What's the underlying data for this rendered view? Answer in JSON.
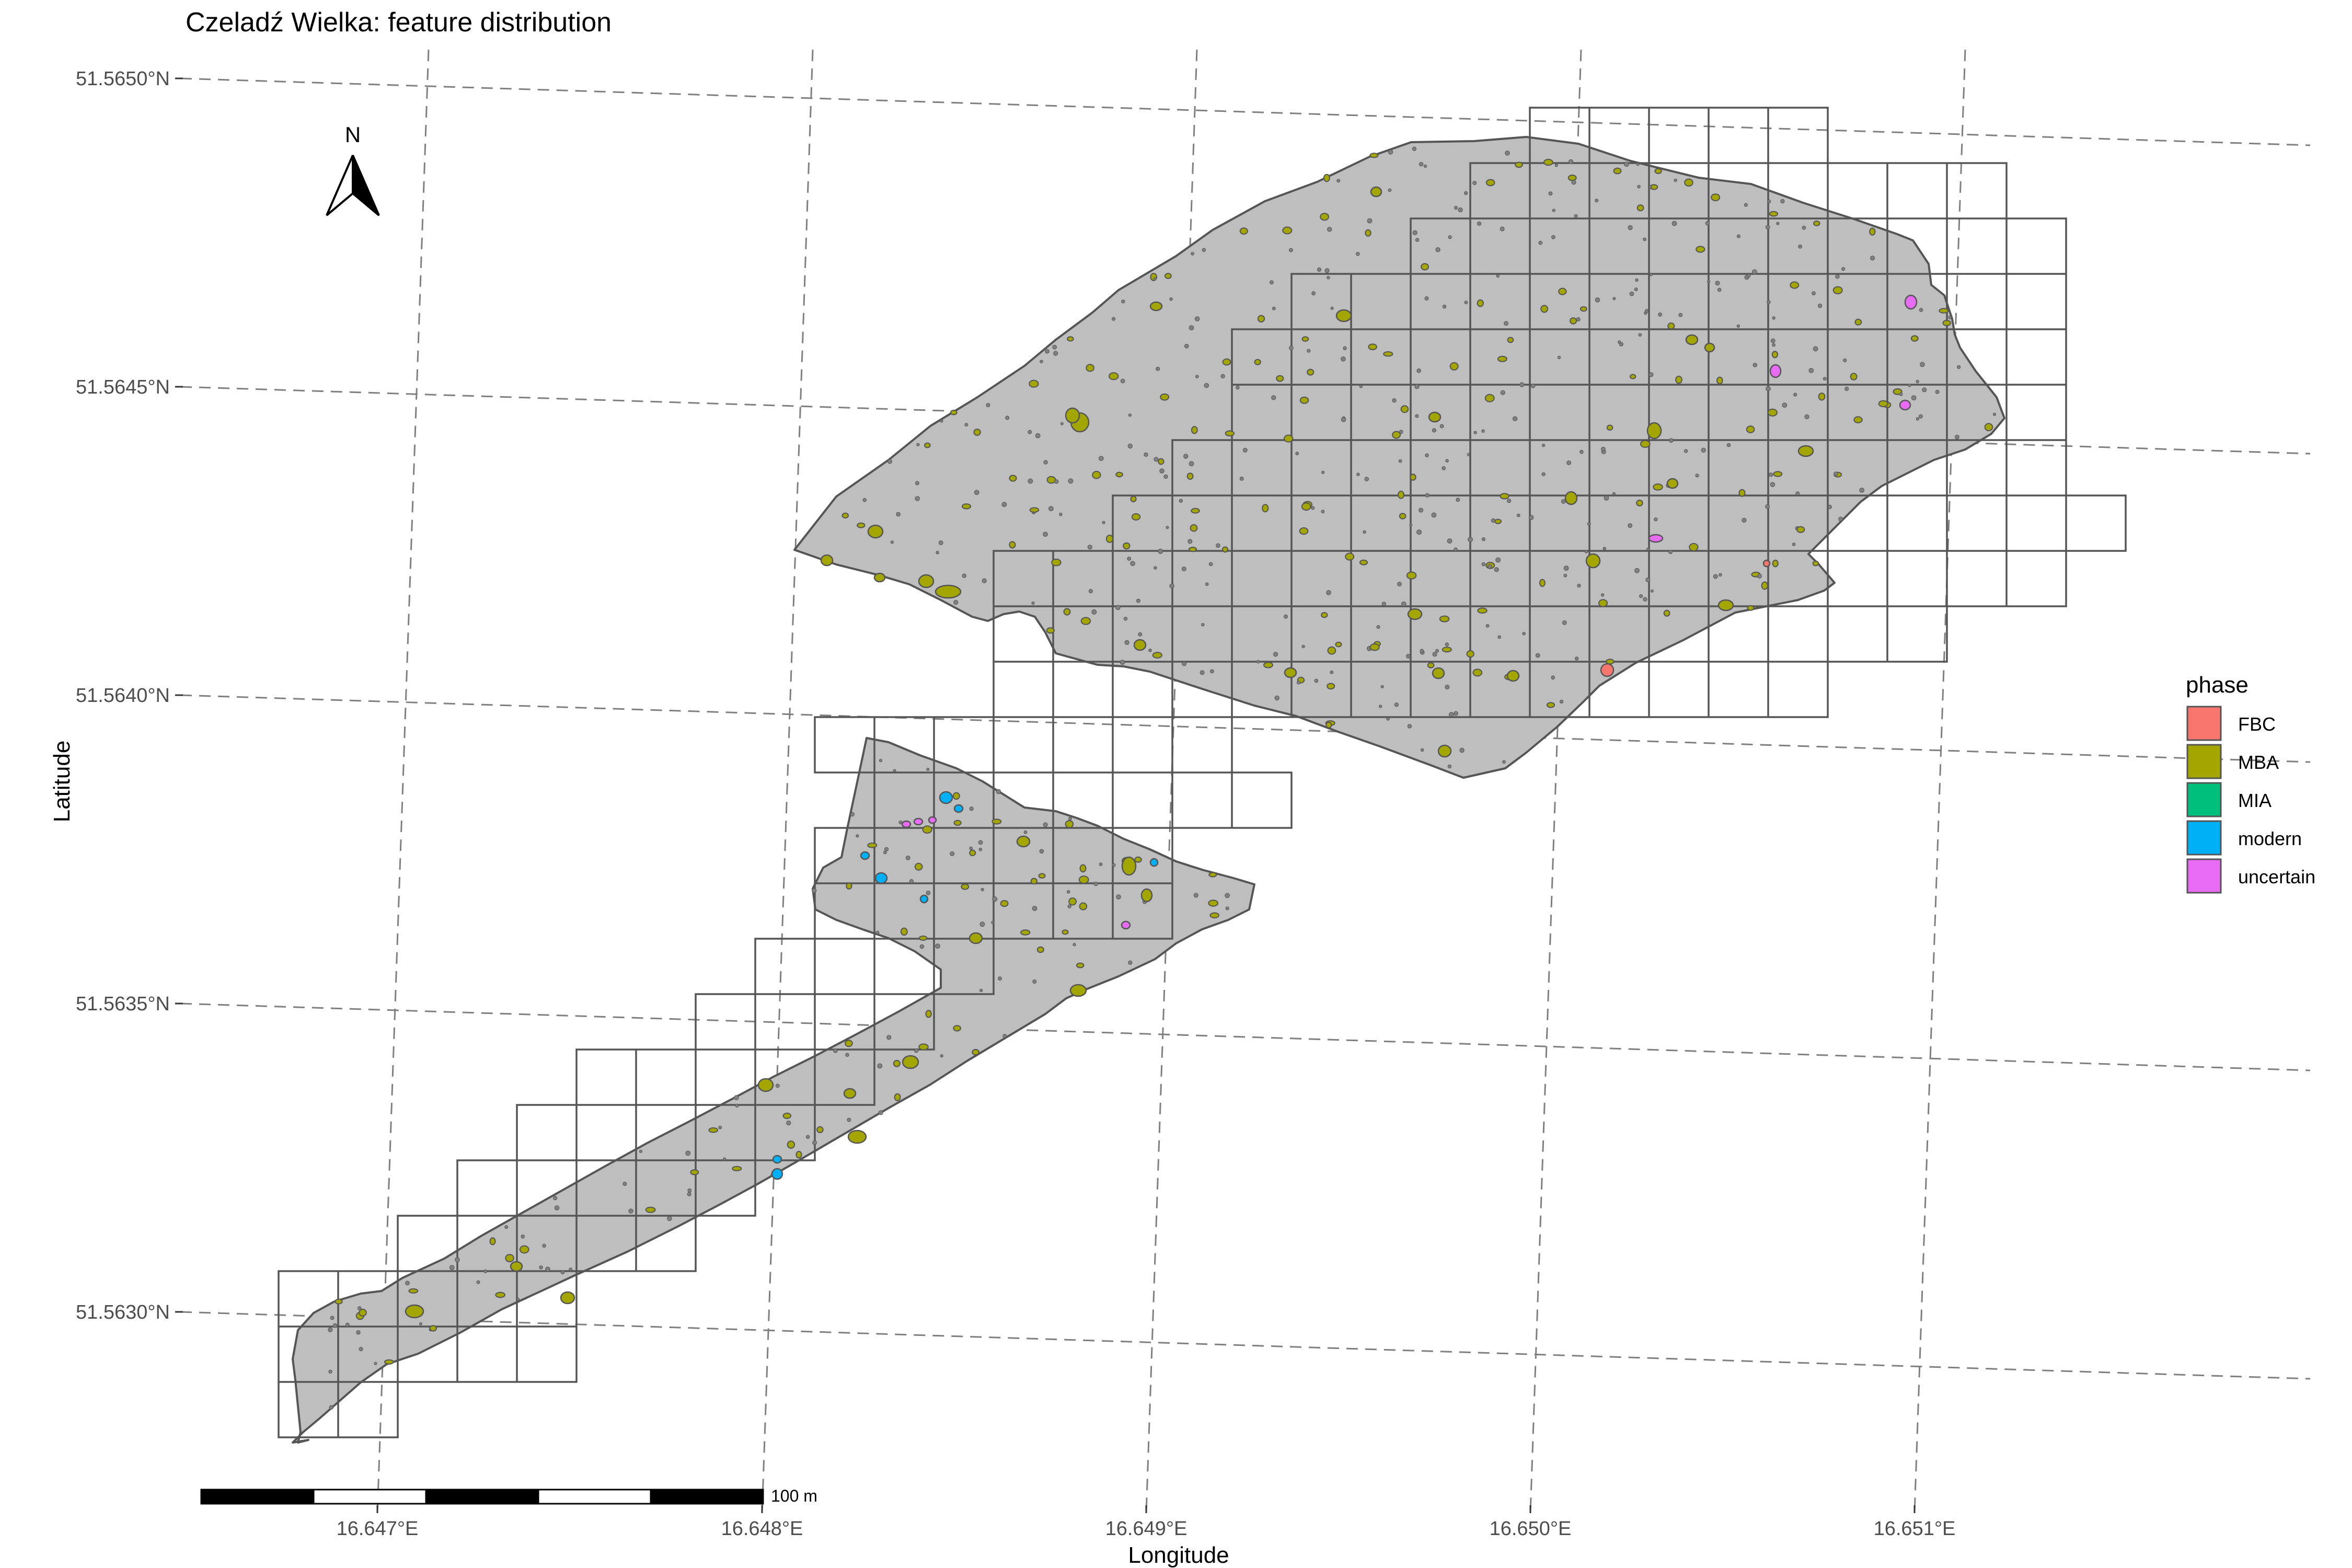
{
  "title": "Czeladź Wielka: feature distribution",
  "axes": {
    "xlabel": "Longitude",
    "ylabel": "Latitude",
    "x_ticks": [
      "16.647°E",
      "16.648°E",
      "16.649°E",
      "16.650°E",
      "16.651°E"
    ],
    "y_ticks": [
      "51.5650°N",
      "51.5645°N",
      "51.5640°N",
      "51.5635°N",
      "51.5630°N"
    ]
  },
  "north_arrow": {
    "label": "N"
  },
  "scale_bar": {
    "label": "100 m"
  },
  "legend": {
    "title": "phase",
    "items": [
      {
        "label": "FBC",
        "color": "#F8766D"
      },
      {
        "label": "MBA",
        "color": "#A3A500"
      },
      {
        "label": "MIA",
        "color": "#00BF7D"
      },
      {
        "label": "modern",
        "color": "#00B0F6"
      },
      {
        "label": "uncertain",
        "color": "#E76BF3"
      }
    ]
  },
  "colors": {
    "excavation_area": "#bebebe",
    "outline": "#555555",
    "graticule": "#7f7f7f",
    "small_feature": "#808080"
  }
}
